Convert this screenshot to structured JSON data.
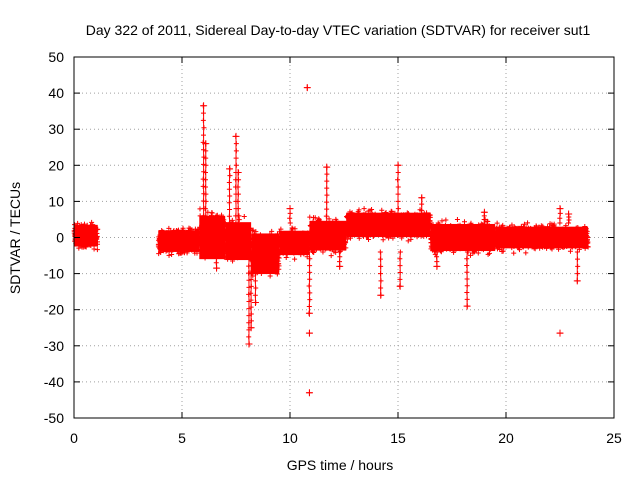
{
  "chart_data": {
    "type": "scatter",
    "title": "Day 322 of 2011, Sidereal Day-to-day VTEC variation (SDTVAR) for receiver sut1",
    "xlabel": "GPS time / hours",
    "ylabel": "SDTVAR / TECUs",
    "xlim": [
      0,
      25
    ],
    "ylim": [
      -50,
      50
    ],
    "x_ticks": [
      0,
      5,
      10,
      15,
      20,
      25
    ],
    "x_tick_labels": [
      "0",
      "5",
      "10",
      "15",
      "20",
      "25"
    ],
    "y_ticks": [
      50,
      40,
      30,
      20,
      10,
      0,
      -10,
      -20,
      -30,
      -40,
      -50
    ],
    "y_tick_labels": [
      "50",
      "40",
      "30",
      "20",
      "10",
      "0",
      "-10",
      "-20",
      "-30",
      "-40",
      "-50"
    ],
    "grid": true,
    "marker": "+",
    "color": "#ff0000",
    "band_segments": [
      {
        "x": [
          0.0,
          1.1
        ],
        "lower": -3.5,
        "upper": 4.5
      },
      {
        "x": [
          3.9,
          5.8
        ],
        "lower": -5,
        "upper": 3
      },
      {
        "x": [
          5.8,
          7.0
        ],
        "lower": -8,
        "upper": 8
      },
      {
        "x": [
          7.0,
          8.2
        ],
        "lower": -8,
        "upper": 6
      },
      {
        "x": [
          8.2,
          9.5
        ],
        "lower": -12,
        "upper": 3
      },
      {
        "x": [
          9.5,
          10.9
        ],
        "lower": -6,
        "upper": 3
      },
      {
        "x": [
          10.9,
          12.6
        ],
        "lower": -5,
        "upper": 6
      },
      {
        "x": [
          12.6,
          16.5
        ],
        "lower": -1,
        "upper": 8
      },
      {
        "x": [
          16.5,
          19.5
        ],
        "lower": -5,
        "upper": 5
      },
      {
        "x": [
          19.5,
          23.8
        ],
        "lower": -4,
        "upper": 4
      }
    ],
    "spikes": [
      {
        "x": 6.0,
        "y": 36.5
      },
      {
        "x": 6.1,
        "y": 26
      },
      {
        "x": 7.2,
        "y": 19
      },
      {
        "x": 7.5,
        "y": 28
      },
      {
        "x": 7.6,
        "y": 18
      },
      {
        "x": 8.1,
        "y": -29.5
      },
      {
        "x": 8.2,
        "y": -25
      },
      {
        "x": 8.4,
        "y": -18
      },
      {
        "x": 10.0,
        "y": 8
      },
      {
        "x": 10.8,
        "y": 41.5
      },
      {
        "x": 10.9,
        "y": -21
      },
      {
        "x": 10.9,
        "y": -26.5
      },
      {
        "x": 10.9,
        "y": -43
      },
      {
        "x": 11.7,
        "y": 19.5
      },
      {
        "x": 12.3,
        "y": -8
      },
      {
        "x": 14.2,
        "y": -16
      },
      {
        "x": 15.0,
        "y": 20
      },
      {
        "x": 15.1,
        "y": -13.5
      },
      {
        "x": 16.1,
        "y": 11
      },
      {
        "x": 18.2,
        "y": -19
      },
      {
        "x": 19.0,
        "y": 7
      },
      {
        "x": 22.5,
        "y": 8
      },
      {
        "x": 22.5,
        "y": -26.5
      },
      {
        "x": 23.3,
        "y": -12
      },
      {
        "x": 22.9,
        "y": 6.5
      },
      {
        "x": 6.6,
        "y": -8.5
      },
      {
        "x": 16.8,
        "y": -8
      }
    ]
  }
}
